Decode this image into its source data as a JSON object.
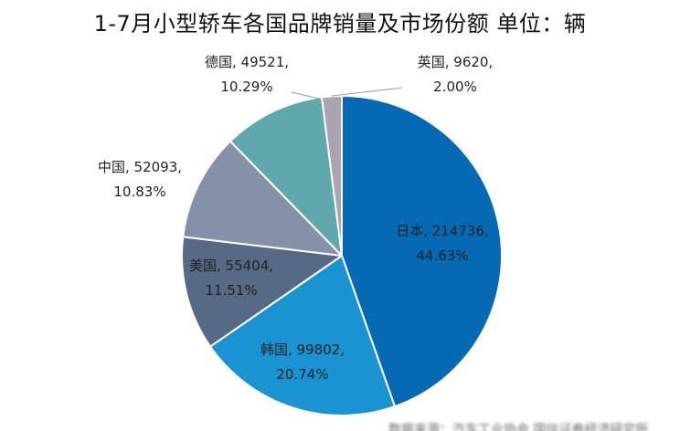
{
  "chart_data": {
    "type": "pie",
    "title": "1-7月小型轿车各国品牌销量及市场份额 单位：辆",
    "start_angle_deg": 0,
    "direction": "clockwise",
    "slices": [
      {
        "name": "日本",
        "value": 214736,
        "percent_label": "44.63%",
        "value_label": "日本, 214736,",
        "color": "#0569b3"
      },
      {
        "name": "韩国",
        "value": 99802,
        "percent_label": "20.74%",
        "value_label": "韩国, 99802,",
        "color": "#1993d1"
      },
      {
        "name": "美国",
        "value": 55404,
        "percent_label": "11.51%",
        "value_label": "美国, 55404,",
        "color": "#566a86"
      },
      {
        "name": "中国",
        "value": 52093,
        "percent_label": "10.83%",
        "value_label": "中国, 52093,",
        "color": "#8491a9"
      },
      {
        "name": "德国",
        "value": 49521,
        "percent_label": "10.29%",
        "value_label": "德国, 49521,",
        "color": "#5fa8ad"
      },
      {
        "name": "英国",
        "value": 9620,
        "percent_label": "2.00%",
        "value_label": "英国, 9620,",
        "color": "#a8a4b2"
      }
    ]
  },
  "source_note": "数据来源：汽车工业协会 国信证券经济研究所"
}
